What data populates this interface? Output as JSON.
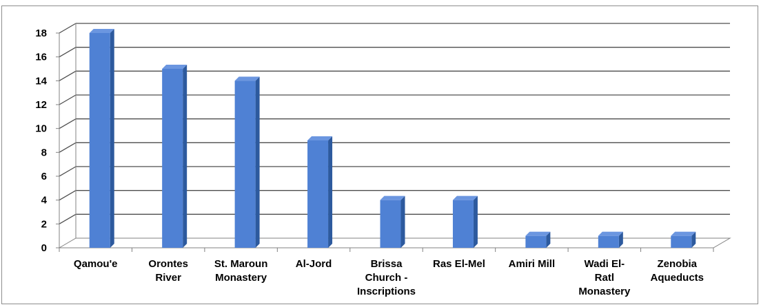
{
  "chart_data": {
    "type": "bar",
    "categories": [
      [
        "Qamou'e"
      ],
      [
        "Orontes",
        "River"
      ],
      [
        "St. Maroun",
        "Monastery"
      ],
      [
        "Al-Jord"
      ],
      [
        "Brissa",
        "Church -",
        "Inscriptions"
      ],
      [
        "Ras El-Mel"
      ],
      [
        "Amiri Mill"
      ],
      [
        "Wadi El-",
        "Ratl",
        "Monastery"
      ],
      [
        "Zenobia",
        "Aqueducts"
      ]
    ],
    "values": [
      18,
      15,
      14,
      9,
      4,
      4,
      1,
      1,
      1
    ],
    "ylim": [
      0,
      18
    ],
    "yticks": [
      0,
      2,
      4,
      6,
      8,
      10,
      12,
      14,
      16,
      18
    ],
    "grid": true,
    "legend": "none",
    "style": "3d-column",
    "colors": {
      "bar_front": "#4f81d4",
      "bar_side": "#2d5a9e",
      "bar_top": "#6b96e0",
      "grid": "#4d4d4d",
      "axis": "#808080"
    }
  }
}
